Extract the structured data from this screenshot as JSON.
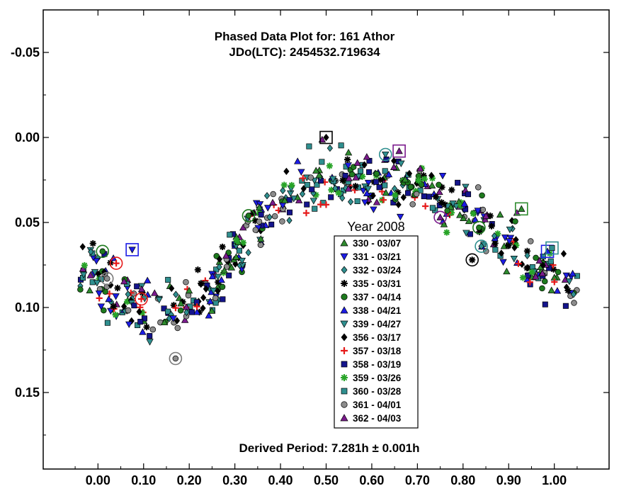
{
  "chart_data": {
    "type": "scatter",
    "title": "Phased Data Plot for: 161 Athor",
    "subtitle": "JDo(LTC): 2454532.719634",
    "footer": "Derived Period: 7.281h  ± 0.001h",
    "xlim": [
      -0.12,
      1.12
    ],
    "ylim": [
      -0.075,
      0.195
    ],
    "y_inverted": true,
    "x_ticks": [
      0.0,
      0.1,
      0.2,
      0.3,
      0.4,
      0.5,
      0.6,
      0.7,
      0.8,
      0.9,
      1.0
    ],
    "x_tick_labels": [
      "0.00",
      "0.10",
      "0.20",
      "0.30",
      "0.40",
      "0.50",
      "0.60",
      "0.70",
      "0.80",
      "0.90",
      "1.00"
    ],
    "y_ticks": [
      -0.05,
      0.0,
      0.05,
      0.1,
      0.15
    ],
    "y_tick_labels": [
      "-0.05",
      "0.00",
      "0.05",
      "0.10",
      "0.15"
    ],
    "grid": false,
    "legend": {
      "title": "Year 2008",
      "placement": "center-bottom"
    },
    "series": [
      {
        "name": "330 - 03/07",
        "marker": "triangle-up",
        "color": "#2e8b2e"
      },
      {
        "name": "331 - 03/21",
        "marker": "triangle-down",
        "color": "#1c1ce6"
      },
      {
        "name": "332 - 03/24",
        "marker": "diamond",
        "color": "#2f8f8f"
      },
      {
        "name": "335 - 03/31",
        "marker": "asterisk",
        "color": "#000000"
      },
      {
        "name": "337 - 04/14",
        "marker": "circle",
        "color": "#1e7a1e"
      },
      {
        "name": "338 - 04/21",
        "marker": "triangle-up",
        "color": "#1c1ce6"
      },
      {
        "name": "339 - 04/27",
        "marker": "triangle-down",
        "color": "#2f8f8f"
      },
      {
        "name": "356 - 03/17",
        "marker": "diamond",
        "color": "#000000"
      },
      {
        "name": "357 - 03/18",
        "marker": "plus",
        "color": "#e61a1a"
      },
      {
        "name": "358 - 03/19",
        "marker": "square",
        "color": "#14148c"
      },
      {
        "name": "359 - 03/26",
        "marker": "asterisk",
        "color": "#28a428"
      },
      {
        "name": "360 - 03/28",
        "marker": "square",
        "color": "#2f8f8f"
      },
      {
        "name": "361 - 04/01",
        "marker": "circle",
        "color": "#8c8c8c"
      },
      {
        "name": "362 - 04/03",
        "marker": "triangle-up",
        "color": "#7a1a8c"
      }
    ],
    "light_curve_anchors": {
      "phase": [
        -0.03,
        0.0,
        0.05,
        0.1,
        0.15,
        0.2,
        0.25,
        0.3,
        0.35,
        0.4,
        0.45,
        0.5,
        0.55,
        0.6,
        0.65,
        0.7,
        0.75,
        0.8,
        0.85,
        0.9,
        0.95,
        1.0,
        1.05
      ],
      "magnitude": [
        0.075,
        0.085,
        0.095,
        0.102,
        0.101,
        0.097,
        0.088,
        0.068,
        0.05,
        0.038,
        0.028,
        0.022,
        0.022,
        0.028,
        0.027,
        0.03,
        0.036,
        0.042,
        0.052,
        0.062,
        0.074,
        0.083,
        0.09
      ]
    },
    "highlighted_points": [
      {
        "series": 7,
        "x": 0.5,
        "y": 0.0
      },
      {
        "series": 12,
        "x": 0.17,
        "y": 0.13
      },
      {
        "series": 13,
        "x": 0.66,
        "y": 0.008
      },
      {
        "series": 1,
        "x": 0.075,
        "y": 0.066
      },
      {
        "series": 8,
        "x": 0.04,
        "y": 0.074
      },
      {
        "series": 8,
        "x": 0.095,
        "y": 0.095
      },
      {
        "series": 4,
        "x": 0.33,
        "y": 0.046
      },
      {
        "series": 12,
        "x": 0.02,
        "y": 0.083
      },
      {
        "series": 4,
        "x": 0.01,
        "y": 0.067
      },
      {
        "series": 3,
        "x": 0.82,
        "y": 0.072
      },
      {
        "series": 2,
        "x": 0.84,
        "y": 0.064
      },
      {
        "series": 4,
        "x": 0.835,
        "y": 0.053
      },
      {
        "series": 0,
        "x": 0.928,
        "y": 0.042
      },
      {
        "series": 13,
        "x": 0.75,
        "y": 0.047
      },
      {
        "series": 5,
        "x": 0.985,
        "y": 0.067
      },
      {
        "series": 11,
        "x": 0.995,
        "y": 0.065
      },
      {
        "series": 6,
        "x": 0.63,
        "y": 0.01
      }
    ]
  }
}
